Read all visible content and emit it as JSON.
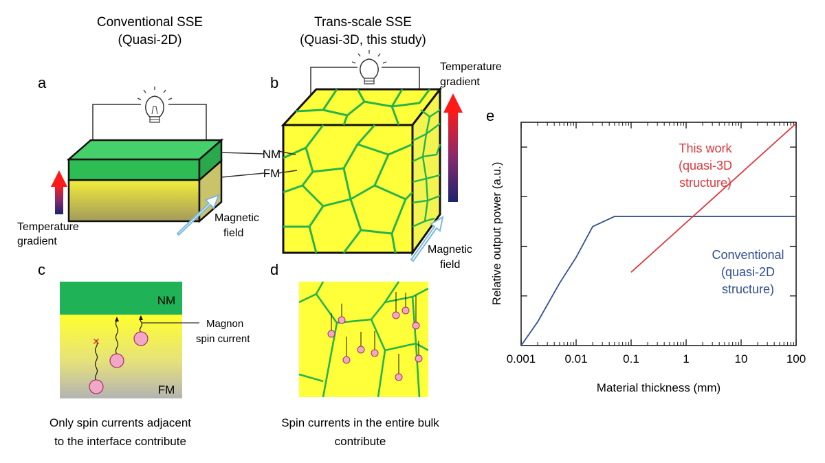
{
  "header_a": {
    "line1": "Conventional SSE",
    "line2": "(Quasi-2D)"
  },
  "header_b": {
    "line1": "Trans-scale SSE",
    "line2": "(Quasi-3D, this study)"
  },
  "panels": {
    "a": "a",
    "b": "b",
    "c": "c",
    "d": "d",
    "e": "e"
  },
  "panel_a": {
    "temp_label_1": "Temperature",
    "temp_label_2": "gradient",
    "mag_label_1": "Magnetic",
    "mag_label_2": "field"
  },
  "panel_b": {
    "nm_label": "NM",
    "fm_label": "FM",
    "temp_label_1": "Temperature",
    "temp_label_2": "gradient",
    "mag_label_1": "Magnetic",
    "mag_label_2": "field"
  },
  "panel_c": {
    "nm_label": "NM",
    "fm_label": "FM",
    "magnon_label_1": "Magnon",
    "magnon_label_2": "spin current",
    "caption_1": "Only spin currents adjacent",
    "caption_2": "to the interface contribute"
  },
  "panel_d": {
    "caption_1": "Spin currents in the entire bulk",
    "caption_2": "contribute"
  },
  "colors": {
    "nm_green": "#2ebc55",
    "grain_green": "#27b34a",
    "fm_yellow": "#ffff33",
    "magnon_pink": "#f2a7c7",
    "conventional_blue": "#2f4f8f",
    "this_work_red": "#e0363a"
  },
  "chart_data": {
    "type": "line",
    "xlabel": "Material thickness (mm)",
    "ylabel": "Relative output power (a.u.)",
    "x_scale": "log",
    "y_scale": "log",
    "xlim": [
      0.001,
      100
    ],
    "x_ticks": [
      "0.001",
      "0.01",
      "0.1",
      "1",
      "10",
      "100"
    ],
    "grid": false,
    "series": [
      {
        "annotation": [
          "Conventional",
          "(quasi-2D",
          "structure)"
        ],
        "color": "#2f4f8f",
        "x": [
          0.001,
          0.002,
          0.005,
          0.01,
          0.02,
          0.05,
          0.1,
          1,
          10,
          100
        ],
        "y": [
          0.0001,
          0.0003,
          0.0018,
          0.006,
          0.025,
          0.04,
          0.04,
          0.04,
          0.04,
          0.04
        ]
      },
      {
        "annotation": [
          "This work",
          "(quasi-3D",
          "structure)"
        ],
        "color": "#e0363a",
        "x": [
          0.1,
          100
        ],
        "y": [
          0.003,
          3
        ]
      }
    ]
  }
}
